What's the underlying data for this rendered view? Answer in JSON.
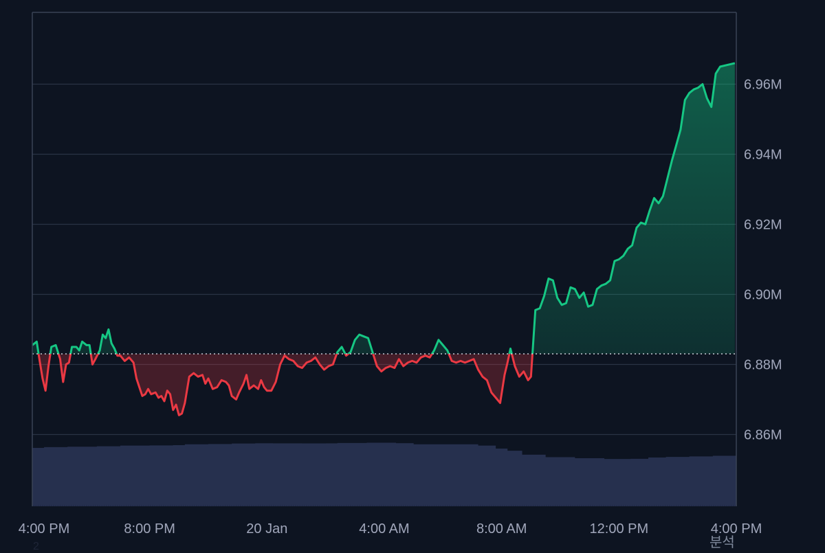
{
  "colors": {
    "background": "#0d1421",
    "grid": "#2a3345",
    "axis": "#3a4356",
    "up_line": "#16c784",
    "down_line": "#ea3943",
    "up_fill_top": "#16c784",
    "down_fill": "#ea3943",
    "baseline": "#c9ced8",
    "volume": "#2b3556",
    "tick_text": "#a1a7bb"
  },
  "corner_labels": {
    "bottom_right": "분석",
    "bottom_left": "2"
  },
  "chart_data": {
    "type": "area",
    "x_range": [
      "4:00 PM",
      "4:00 PM"
    ],
    "x_ticks": [
      "4:00 PM",
      "8:00 PM",
      "20 Jan",
      "4:00 AM",
      "8:00 AM",
      "12:00 PM",
      "4:00 PM"
    ],
    "y_ticks": [
      "6.86M",
      "6.88M",
      "6.90M",
      "6.92M",
      "6.94M",
      "6.96M"
    ],
    "y_tick_values": [
      6860000,
      6880000,
      6900000,
      6920000,
      6940000,
      6960000
    ],
    "ylim": [
      6839500,
      6980500
    ],
    "baseline": 6883000,
    "grid": true,
    "axis_side": "right",
    "x_start_hours": 0,
    "x_end_hours": 24,
    "x_tick_hours": [
      0,
      4,
      8,
      12,
      16,
      20,
      24
    ],
    "series": [
      {
        "type": "line",
        "points": [
          [
            0.0,
            6885500
          ],
          [
            0.15,
            6886500
          ],
          [
            0.25,
            6881000
          ],
          [
            0.35,
            6876000
          ],
          [
            0.45,
            6872500
          ],
          [
            0.55,
            6879500
          ],
          [
            0.65,
            6885000
          ],
          [
            0.8,
            6885500
          ],
          [
            0.95,
            6881500
          ],
          [
            1.05,
            6875000
          ],
          [
            1.15,
            6880000
          ],
          [
            1.25,
            6880500
          ],
          [
            1.35,
            6885000
          ],
          [
            1.5,
            6885000
          ],
          [
            1.6,
            6884000
          ],
          [
            1.7,
            6886500
          ],
          [
            1.85,
            6885500
          ],
          [
            1.95,
            6885500
          ],
          [
            2.05,
            6880000
          ],
          [
            2.15,
            6881500
          ],
          [
            2.3,
            6884000
          ],
          [
            2.4,
            6888500
          ],
          [
            2.5,
            6887500
          ],
          [
            2.6,
            6890000
          ],
          [
            2.7,
            6886000
          ],
          [
            2.8,
            6884500
          ],
          [
            2.9,
            6882500
          ],
          [
            3.0,
            6882500
          ],
          [
            3.15,
            6881000
          ],
          [
            3.3,
            6882000
          ],
          [
            3.45,
            6880500
          ],
          [
            3.55,
            6876000
          ],
          [
            3.65,
            6873500
          ],
          [
            3.75,
            6871000
          ],
          [
            3.85,
            6871500
          ],
          [
            3.95,
            6873000
          ],
          [
            4.05,
            6871500
          ],
          [
            4.2,
            6872000
          ],
          [
            4.3,
            6870500
          ],
          [
            4.4,
            6871000
          ],
          [
            4.5,
            6869500
          ],
          [
            4.6,
            6872500
          ],
          [
            4.7,
            6871500
          ],
          [
            4.8,
            6867000
          ],
          [
            4.9,
            6868500
          ],
          [
            5.0,
            6865500
          ],
          [
            5.1,
            6866000
          ],
          [
            5.2,
            6869000
          ],
          [
            5.35,
            6876500
          ],
          [
            5.5,
            6877500
          ],
          [
            5.65,
            6876500
          ],
          [
            5.8,
            6877000
          ],
          [
            5.9,
            6874500
          ],
          [
            6.0,
            6876000
          ],
          [
            6.15,
            6873000
          ],
          [
            6.3,
            6873500
          ],
          [
            6.45,
            6875500
          ],
          [
            6.6,
            6875000
          ],
          [
            6.7,
            6874000
          ],
          [
            6.8,
            6871000
          ],
          [
            6.95,
            6870000
          ],
          [
            7.05,
            6872000
          ],
          [
            7.2,
            6874500
          ],
          [
            7.3,
            6877000
          ],
          [
            7.4,
            6873000
          ],
          [
            7.55,
            6874000
          ],
          [
            7.7,
            6873000
          ],
          [
            7.8,
            6875500
          ],
          [
            7.9,
            6873500
          ],
          [
            8.0,
            6872500
          ],
          [
            8.15,
            6872500
          ],
          [
            8.3,
            6875000
          ],
          [
            8.45,
            6880000
          ],
          [
            8.6,
            6882500
          ],
          [
            8.75,
            6881500
          ],
          [
            8.9,
            6881000
          ],
          [
            9.05,
            6879500
          ],
          [
            9.2,
            6879000
          ],
          [
            9.35,
            6880500
          ],
          [
            9.5,
            6881000
          ],
          [
            9.65,
            6882000
          ],
          [
            9.8,
            6880000
          ],
          [
            9.95,
            6878500
          ],
          [
            10.1,
            6879500
          ],
          [
            10.25,
            6880000
          ],
          [
            10.4,
            6883500
          ],
          [
            10.55,
            6885000
          ],
          [
            10.7,
            6882500
          ],
          [
            10.85,
            6883500
          ],
          [
            11.0,
            6887000
          ],
          [
            11.15,
            6888500
          ],
          [
            11.3,
            6888000
          ],
          [
            11.45,
            6887500
          ],
          [
            11.6,
            6883500
          ],
          [
            11.75,
            6879500
          ],
          [
            11.9,
            6878000
          ],
          [
            12.05,
            6879000
          ],
          [
            12.2,
            6879500
          ],
          [
            12.35,
            6879000
          ],
          [
            12.5,
            6881500
          ],
          [
            12.65,
            6879500
          ],
          [
            12.8,
            6880500
          ],
          [
            12.95,
            6881000
          ],
          [
            13.1,
            6880500
          ],
          [
            13.25,
            6882000
          ],
          [
            13.4,
            6882500
          ],
          [
            13.55,
            6882000
          ],
          [
            13.7,
            6884000
          ],
          [
            13.85,
            6887000
          ],
          [
            14.0,
            6885500
          ],
          [
            14.15,
            6884000
          ],
          [
            14.3,
            6881000
          ],
          [
            14.45,
            6880500
          ],
          [
            14.6,
            6881000
          ],
          [
            14.75,
            6880500
          ],
          [
            14.9,
            6881000
          ],
          [
            15.05,
            6881500
          ],
          [
            15.2,
            6878500
          ],
          [
            15.35,
            6876500
          ],
          [
            15.5,
            6875500
          ],
          [
            15.65,
            6872000
          ],
          [
            15.8,
            6870500
          ],
          [
            15.95,
            6869000
          ],
          [
            16.1,
            6877000
          ],
          [
            16.2,
            6880500
          ],
          [
            16.3,
            6884500
          ],
          [
            16.45,
            6879500
          ],
          [
            16.6,
            6876500
          ],
          [
            16.75,
            6878000
          ],
          [
            16.9,
            6875500
          ],
          [
            17.0,
            6876500
          ],
          [
            17.05,
            6883000
          ],
          [
            17.15,
            6895500
          ],
          [
            17.3,
            6896000
          ],
          [
            17.45,
            6899500
          ],
          [
            17.6,
            6904500
          ],
          [
            17.75,
            6904000
          ],
          [
            17.9,
            6899000
          ],
          [
            18.05,
            6897000
          ],
          [
            18.2,
            6897500
          ],
          [
            18.35,
            6902000
          ],
          [
            18.5,
            6901500
          ],
          [
            18.65,
            6899000
          ],
          [
            18.8,
            6900500
          ],
          [
            18.95,
            6896500
          ],
          [
            19.1,
            6897000
          ],
          [
            19.25,
            6901500
          ],
          [
            19.4,
            6902500
          ],
          [
            19.55,
            6903000
          ],
          [
            19.7,
            6904000
          ],
          [
            19.85,
            6909500
          ],
          [
            20.0,
            6910000
          ],
          [
            20.15,
            6911000
          ],
          [
            20.3,
            6913000
          ],
          [
            20.45,
            6914000
          ],
          [
            20.6,
            6919000
          ],
          [
            20.75,
            6920500
          ],
          [
            20.9,
            6920000
          ],
          [
            21.05,
            6924000
          ],
          [
            21.2,
            6927500
          ],
          [
            21.35,
            6926000
          ],
          [
            21.5,
            6928000
          ],
          [
            21.65,
            6933000
          ],
          [
            21.8,
            6938000
          ],
          [
            21.95,
            6942500
          ],
          [
            22.1,
            6947000
          ],
          [
            22.25,
            6955500
          ],
          [
            22.4,
            6957500
          ],
          [
            22.55,
            6958500
          ],
          [
            22.7,
            6959000
          ],
          [
            22.85,
            6960000
          ],
          [
            23.0,
            6956000
          ],
          [
            23.15,
            6953500
          ],
          [
            23.3,
            6963000
          ],
          [
            23.45,
            6965000
          ],
          [
            23.95,
            6966000
          ]
        ]
      },
      {
        "type": "volume",
        "points": [
          [
            0.0,
            0.74
          ],
          [
            0.4,
            0.75
          ],
          [
            1.2,
            0.756
          ],
          [
            2.2,
            0.761
          ],
          [
            3.0,
            0.77
          ],
          [
            4.0,
            0.772
          ],
          [
            4.8,
            0.775
          ],
          [
            5.2,
            0.786
          ],
          [
            6.0,
            0.789
          ],
          [
            6.8,
            0.796
          ],
          [
            7.6,
            0.799
          ],
          [
            8.2,
            0.798
          ],
          [
            9.2,
            0.797
          ],
          [
            10.0,
            0.798
          ],
          [
            10.4,
            0.803
          ],
          [
            11.4,
            0.806
          ],
          [
            12.4,
            0.8
          ],
          [
            13.0,
            0.786
          ],
          [
            14.2,
            0.786
          ],
          [
            15.2,
            0.77
          ],
          [
            15.8,
            0.732
          ],
          [
            16.2,
            0.705
          ],
          [
            16.7,
            0.654
          ],
          [
            17.5,
            0.623
          ],
          [
            18.5,
            0.61
          ],
          [
            19.5,
            0.6
          ],
          [
            20.4,
            0.602
          ],
          [
            21.0,
            0.619
          ],
          [
            21.6,
            0.626
          ],
          [
            22.4,
            0.633
          ],
          [
            23.2,
            0.64
          ],
          [
            23.95,
            0.641
          ]
        ]
      }
    ]
  }
}
